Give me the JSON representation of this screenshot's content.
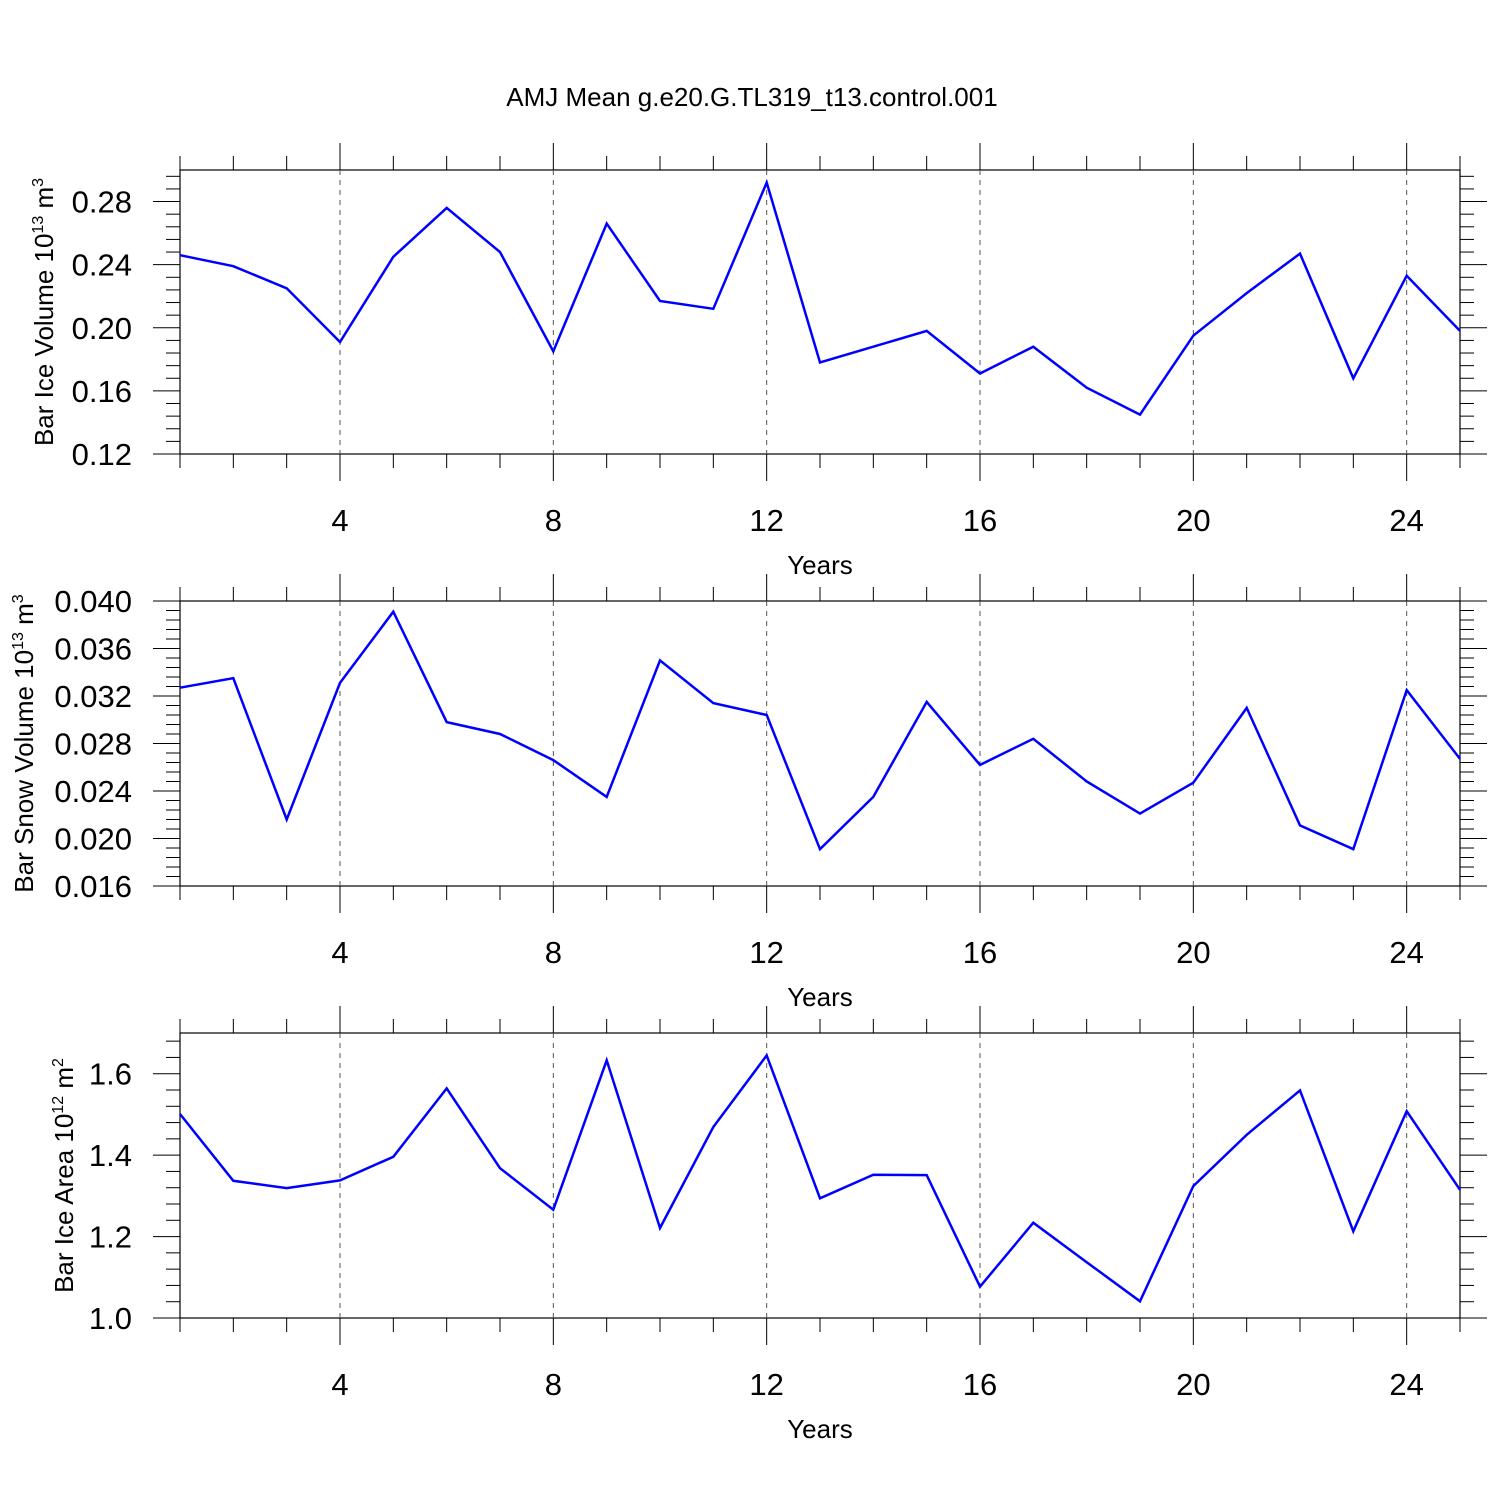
{
  "chart_data": [
    {
      "type": "line",
      "title": "AMJ Mean g.e20.G.TL319_t13.control.001",
      "ylabel": {
        "main": "Bar Ice Volume 10",
        "exponent": "13",
        "unit": " m",
        "unit_exponent": "3"
      },
      "xlabel": "Years",
      "xlim": [
        1,
        25
      ],
      "ylim": [
        0.12,
        0.3
      ],
      "x_ticks": [
        4,
        8,
        12,
        16,
        20,
        24
      ],
      "x_tick_labels": [
        "4",
        "8",
        "12",
        "16",
        "20",
        "24"
      ],
      "y_ticks": [
        0.12,
        0.16,
        0.2,
        0.24,
        0.28
      ],
      "y_tick_labels": [
        "0.12",
        "0.16",
        "0.20",
        "0.24",
        "0.28"
      ],
      "grid": "vertical dashed at major x ticks",
      "line_color": "#0000ff",
      "x": [
        1,
        2,
        3,
        4,
        5,
        6,
        7,
        8,
        9,
        10,
        11,
        12,
        13,
        14,
        15,
        16,
        17,
        18,
        19,
        20,
        21,
        22,
        23,
        24,
        25
      ],
      "values": [
        0.246,
        0.239,
        0.225,
        0.191,
        0.245,
        0.276,
        0.248,
        0.185,
        0.266,
        0.217,
        0.212,
        0.292,
        0.178,
        0.188,
        0.198,
        0.171,
        0.188,
        0.162,
        0.145,
        0.195,
        0.222,
        0.247,
        0.168,
        0.233,
        0.198
      ]
    },
    {
      "type": "line",
      "ylabel": {
        "main": "Bar Snow Volume 10",
        "exponent": "13",
        "unit": " m",
        "unit_exponent": "3"
      },
      "xlabel": "Years",
      "xlim": [
        1,
        25
      ],
      "ylim": [
        0.016,
        0.04
      ],
      "x_ticks": [
        4,
        8,
        12,
        16,
        20,
        24
      ],
      "x_tick_labels": [
        "4",
        "8",
        "12",
        "16",
        "20",
        "24"
      ],
      "y_ticks": [
        0.016,
        0.02,
        0.024,
        0.028,
        0.032,
        0.036,
        0.04
      ],
      "y_tick_labels": [
        "0.016",
        "0.020",
        "0.024",
        "0.028",
        "0.032",
        "0.036",
        "0.040"
      ],
      "grid": "vertical dashed at major x ticks",
      "line_color": "#0000ff",
      "x": [
        1,
        2,
        3,
        4,
        5,
        6,
        7,
        8,
        9,
        10,
        11,
        12,
        13,
        14,
        15,
        16,
        17,
        18,
        19,
        20,
        21,
        22,
        23,
        24,
        25
      ],
      "values": [
        0.0327,
        0.0335,
        0.0216,
        0.0331,
        0.0391,
        0.0298,
        0.0288,
        0.0266,
        0.0235,
        0.035,
        0.0314,
        0.0304,
        0.0191,
        0.0235,
        0.0315,
        0.0262,
        0.0284,
        0.0248,
        0.0221,
        0.0247,
        0.031,
        0.0211,
        0.0191,
        0.0325,
        0.0267
      ]
    },
    {
      "type": "line",
      "ylabel": {
        "main": "Bar Ice Area 10",
        "exponent": "12",
        "unit": " m",
        "unit_exponent": "2"
      },
      "xlabel": "Years",
      "xlim": [
        1,
        25
      ],
      "ylim": [
        1.0,
        1.7
      ],
      "x_ticks": [
        4,
        8,
        12,
        16,
        20,
        24
      ],
      "x_tick_labels": [
        "4",
        "8",
        "12",
        "16",
        "20",
        "24"
      ],
      "y_ticks": [
        1.0,
        1.2,
        1.4,
        1.6
      ],
      "y_tick_labels": [
        "1.0",
        "1.2",
        "1.4",
        "1.6"
      ],
      "grid": "vertical dashed at major x ticks",
      "line_color": "#0000ff",
      "x": [
        1,
        2,
        3,
        4,
        5,
        6,
        7,
        8,
        9,
        10,
        11,
        12,
        13,
        14,
        15,
        16,
        17,
        18,
        19,
        20,
        21,
        22,
        23,
        24,
        25
      ],
      "values": [
        1.501,
        1.337,
        1.319,
        1.338,
        1.396,
        1.564,
        1.368,
        1.266,
        1.633,
        1.221,
        1.469,
        1.645,
        1.294,
        1.352,
        1.351,
        1.077,
        1.234,
        1.137,
        1.041,
        1.324,
        1.45,
        1.559,
        1.213,
        1.508,
        1.315
      ]
    }
  ]
}
